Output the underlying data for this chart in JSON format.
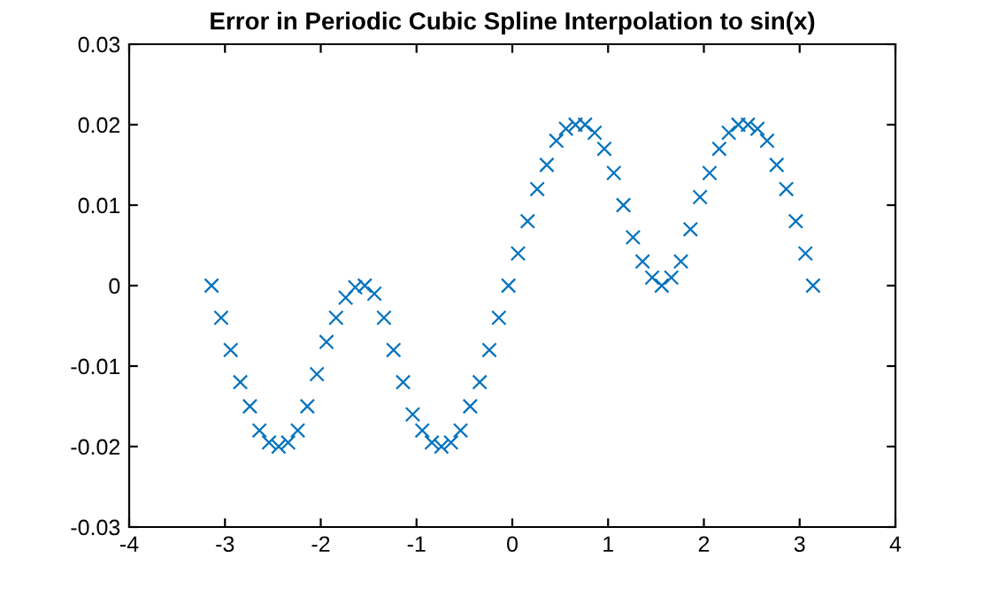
{
  "chart_data": {
    "type": "scatter",
    "title": "Error in Periodic Cubic Spline Interpolation to sin(x)",
    "x": [
      -3.14,
      -3.04,
      -2.94,
      -2.84,
      -2.74,
      -2.64,
      -2.54,
      -2.44,
      -2.34,
      -2.24,
      -2.14,
      -2.04,
      -1.94,
      -1.84,
      -1.74,
      -1.64,
      -1.54,
      -1.44,
      -1.34,
      -1.24,
      -1.14,
      -1.04,
      -0.94,
      -0.84,
      -0.74,
      -0.64,
      -0.54,
      -0.44,
      -0.34,
      -0.24,
      -0.14,
      -0.04,
      0.06,
      0.16,
      0.26,
      0.36,
      0.46,
      0.56,
      0.66,
      0.76,
      0.86,
      0.96,
      1.06,
      1.16,
      1.26,
      1.36,
      1.46,
      1.56,
      1.66,
      1.76,
      1.86,
      1.96,
      2.06,
      2.16,
      2.26,
      2.36,
      2.46,
      2.56,
      2.66,
      2.76,
      2.86,
      2.96,
      3.06,
      3.14
    ],
    "series": [
      {
        "color": "#0072bd",
        "values": [
          0,
          -0.004,
          -0.008,
          -0.012,
          -0.015,
          -0.018,
          -0.0195,
          -0.02,
          -0.0195,
          -0.018,
          -0.015,
          -0.011,
          -0.007,
          -0.004,
          -0.0015,
          -0.0002,
          0,
          -0.001,
          -0.004,
          -0.008,
          -0.012,
          -0.016,
          -0.018,
          -0.0195,
          -0.02,
          -0.0195,
          -0.018,
          -0.015,
          -0.012,
          -0.008,
          -0.004,
          0,
          0.004,
          0.008,
          0.012,
          0.015,
          0.018,
          0.0195,
          0.02,
          0.02,
          0.019,
          0.017,
          0.014,
          0.01,
          0.006,
          0.003,
          0.001,
          0,
          0.001,
          0.003,
          0.007,
          0.011,
          0.014,
          0.017,
          0.019,
          0.02,
          0.02,
          0.0195,
          0.018,
          0.015,
          0.012,
          0.008,
          0.004,
          0
        ]
      }
    ],
    "xlim": [
      -4,
      4
    ],
    "ylim": [
      -0.03,
      0.03
    ],
    "xticks": [
      -4,
      -3,
      -2,
      -1,
      0,
      1,
      2,
      3,
      4
    ],
    "yticks": [
      -0.03,
      -0.02,
      -0.01,
      0,
      0.01,
      0.02,
      0.03
    ],
    "marker": "cross",
    "grid": false,
    "legend": false
  }
}
